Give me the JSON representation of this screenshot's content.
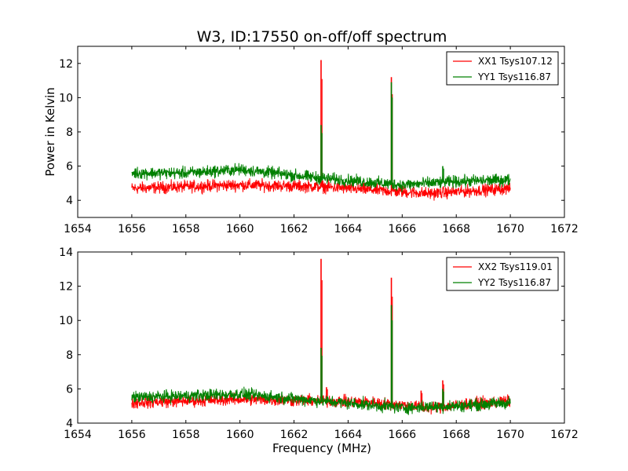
{
  "figure": {
    "title": "W3, ID:17550 on-off/off spectrum",
    "xlabel": "Frequency (MHz)",
    "ylabel": "Power in Kelvin"
  },
  "chart_data": [
    {
      "type": "line",
      "title": "W3, ID:17550 on-off/off spectrum",
      "xlabel": "",
      "ylabel": "Power in Kelvin",
      "xlim": [
        1654,
        1672
      ],
      "ylim": [
        3,
        13
      ],
      "xticks": [
        1654,
        1656,
        1658,
        1660,
        1662,
        1664,
        1666,
        1668,
        1670,
        1672
      ],
      "yticks": [
        4,
        6,
        8,
        10,
        12
      ],
      "x_range": [
        1656,
        1670
      ],
      "legend_position": "top-right",
      "series": [
        {
          "name": "XX1 Tsys107.12",
          "color": "#ff0000",
          "baseline": [
            [
              1656,
              4.7
            ],
            [
              1660,
              4.9
            ],
            [
              1663,
              4.8
            ],
            [
              1665,
              4.6
            ],
            [
              1667,
              4.4
            ],
            [
              1670,
              4.7
            ]
          ],
          "noise": 0.3,
          "peaks": [
            {
              "x": 1663.0,
              "y": 12.2
            },
            {
              "x": 1665.6,
              "y": 11.2
            }
          ]
        },
        {
          "name": "YY1 Tsys116.87",
          "color": "#008000",
          "baseline": [
            [
              1656,
              5.6
            ],
            [
              1658,
              5.6
            ],
            [
              1660,
              5.8
            ],
            [
              1663,
              5.3
            ],
            [
              1666,
              4.9
            ],
            [
              1668,
              5.1
            ],
            [
              1670,
              5.2
            ]
          ],
          "noise": 0.3,
          "peaks": [
            {
              "x": 1663.0,
              "y": 8.4
            },
            {
              "x": 1665.6,
              "y": 10.9
            },
            {
              "x": 1667.5,
              "y": 6.0
            }
          ]
        }
      ]
    },
    {
      "type": "line",
      "title": "",
      "xlabel": "Frequency (MHz)",
      "ylabel": "",
      "xlim": [
        1654,
        1672
      ],
      "ylim": [
        4,
        14
      ],
      "xticks": [
        1654,
        1656,
        1658,
        1660,
        1662,
        1664,
        1666,
        1668,
        1670,
        1672
      ],
      "yticks": [
        4,
        6,
        8,
        10,
        12,
        14
      ],
      "x_range": [
        1656,
        1670
      ],
      "legend_position": "top-right",
      "series": [
        {
          "name": "XX2 Tsys119.01",
          "color": "#ff0000",
          "baseline": [
            [
              1656,
              5.2
            ],
            [
              1660,
              5.4
            ],
            [
              1663,
              5.3
            ],
            [
              1665,
              5.2
            ],
            [
              1667,
              4.9
            ],
            [
              1670,
              5.3
            ]
          ],
          "noise": 0.3,
          "peaks": [
            {
              "x": 1663.0,
              "y": 13.6
            },
            {
              "x": 1663.2,
              "y": 6.1
            },
            {
              "x": 1665.6,
              "y": 12.5
            },
            {
              "x": 1667.5,
              "y": 6.5
            },
            {
              "x": 1666.7,
              "y": 5.9
            }
          ]
        },
        {
          "name": "YY2 Tsys116.87",
          "color": "#008000",
          "baseline": [
            [
              1656,
              5.5
            ],
            [
              1660,
              5.7
            ],
            [
              1663,
              5.3
            ],
            [
              1666,
              4.9
            ],
            [
              1668,
              5.0
            ],
            [
              1670,
              5.2
            ]
          ],
          "noise": 0.3,
          "peaks": [
            {
              "x": 1663.0,
              "y": 8.4
            },
            {
              "x": 1665.6,
              "y": 10.9
            },
            {
              "x": 1667.5,
              "y": 6.0
            }
          ]
        }
      ]
    }
  ]
}
